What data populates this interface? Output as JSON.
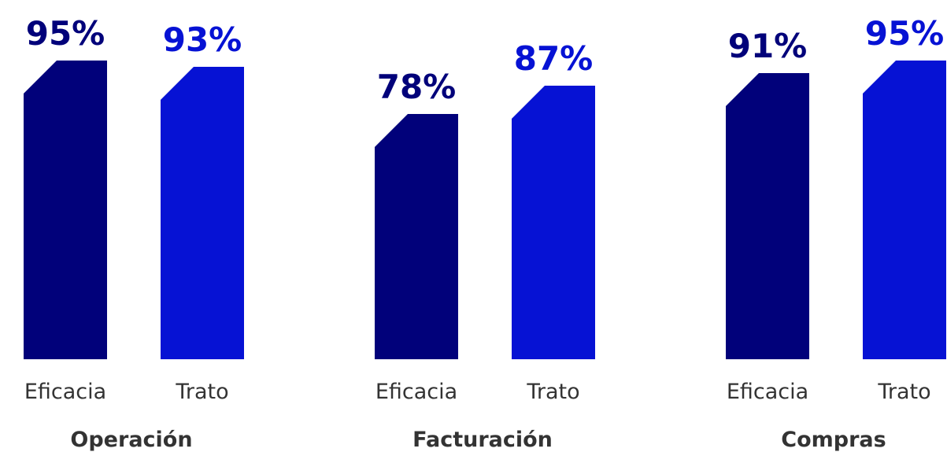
{
  "chart_data": {
    "type": "bar",
    "categories": [
      "Operación",
      "Facturación",
      "Compras"
    ],
    "series": [
      {
        "name": "Eficacia",
        "color": "#01017a",
        "values": [
          95,
          78,
          91
        ],
        "value_labels": [
          "95%",
          "78%",
          "91%"
        ]
      },
      {
        "name": "Trato",
        "color": "#0612d4",
        "values": [
          93,
          87,
          95
        ],
        "value_labels": [
          "93%",
          "87%",
          "95%"
        ]
      }
    ]
  }
}
